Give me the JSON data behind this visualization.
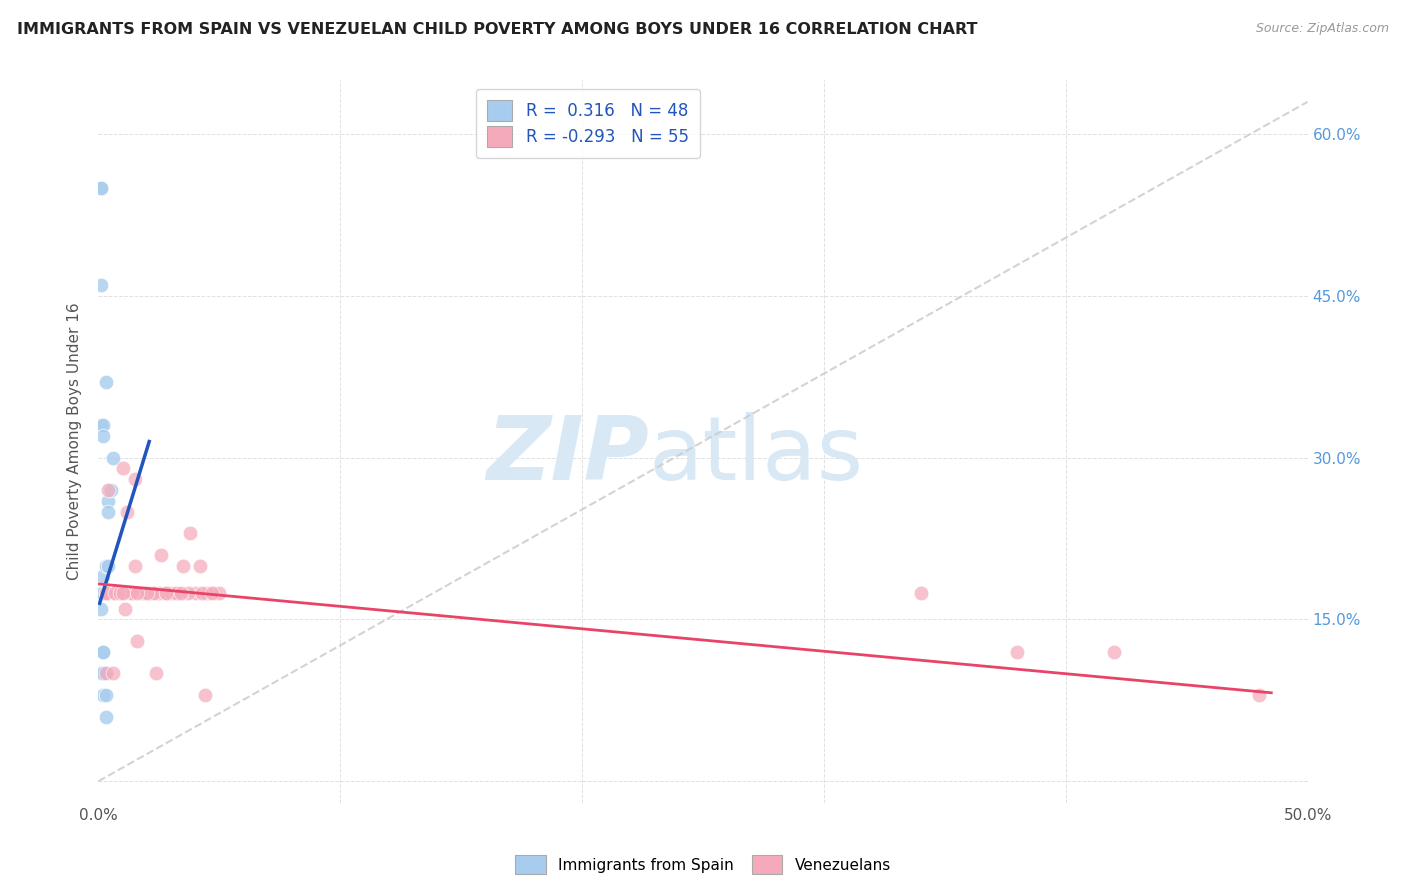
{
  "title": "IMMIGRANTS FROM SPAIN VS VENEZUELAN CHILD POVERTY AMONG BOYS UNDER 16 CORRELATION CHART",
  "source": "Source: ZipAtlas.com",
  "ylabel": "Child Poverty Among Boys Under 16",
  "xlim": [
    0.0,
    0.5
  ],
  "ylim": [
    -0.02,
    0.65
  ],
  "blue_R": 0.316,
  "blue_N": 48,
  "pink_R": -0.293,
  "pink_N": 55,
  "color_blue": "#A8CCEE",
  "color_pink": "#F5AABB",
  "color_blue_line": "#2255BB",
  "color_pink_line": "#E84468",
  "color_dashed": "#CCCCCC",
  "watermark_color": "#D8E8F5",
  "watermark_zip": "ZIP",
  "watermark_atlas": "atlas",
  "legend_label_blue": "Immigrants from Spain",
  "legend_label_pink": "Venezuelans",
  "y_ticks": [
    0.0,
    0.15,
    0.3,
    0.45,
    0.6
  ],
  "x_ticks": [
    0.0,
    0.1,
    0.2,
    0.3,
    0.4,
    0.5
  ],
  "blue_x": [
    0.002,
    0.003,
    0.001,
    0.003,
    0.005,
    0.001,
    0.002,
    0.004,
    0.003,
    0.005,
    0.004,
    0.006,
    0.002,
    0.003,
    0.004,
    0.001,
    0.002,
    0.003,
    0.004,
    0.001,
    0.002,
    0.003,
    0.001,
    0.004,
    0.005,
    0.002,
    0.003,
    0.001,
    0.002,
    0.004,
    0.003,
    0.005,
    0.002,
    0.003,
    0.001,
    0.004,
    0.002,
    0.003,
    0.001,
    0.002,
    0.004,
    0.003,
    0.005,
    0.002,
    0.003,
    0.004,
    0.002,
    0.003
  ],
  "blue_y": [
    0.19,
    0.2,
    0.46,
    0.37,
    0.175,
    0.33,
    0.33,
    0.26,
    0.175,
    0.27,
    0.175,
    0.3,
    0.32,
    0.175,
    0.2,
    0.16,
    0.175,
    0.175,
    0.175,
    0.55,
    0.175,
    0.175,
    0.55,
    0.175,
    0.175,
    0.12,
    0.175,
    0.175,
    0.175,
    0.175,
    0.175,
    0.175,
    0.175,
    0.1,
    0.1,
    0.175,
    0.12,
    0.175,
    0.175,
    0.08,
    0.25,
    0.175,
    0.175,
    0.1,
    0.08,
    0.175,
    0.175,
    0.06
  ],
  "pink_x": [
    0.003,
    0.006,
    0.01,
    0.015,
    0.02,
    0.028,
    0.038,
    0.048,
    0.004,
    0.007,
    0.012,
    0.018,
    0.025,
    0.033,
    0.042,
    0.003,
    0.006,
    0.01,
    0.015,
    0.022,
    0.03,
    0.04,
    0.05,
    0.004,
    0.008,
    0.013,
    0.019,
    0.026,
    0.035,
    0.045,
    0.003,
    0.007,
    0.011,
    0.016,
    0.023,
    0.032,
    0.043,
    0.004,
    0.009,
    0.014,
    0.02,
    0.028,
    0.037,
    0.047,
    0.003,
    0.006,
    0.38,
    0.42,
    0.48,
    0.34,
    0.01,
    0.016,
    0.024,
    0.034,
    0.044
  ],
  "pink_y": [
    0.175,
    0.175,
    0.175,
    0.2,
    0.175,
    0.175,
    0.23,
    0.175,
    0.175,
    0.175,
    0.25,
    0.175,
    0.175,
    0.175,
    0.2,
    0.175,
    0.175,
    0.29,
    0.28,
    0.175,
    0.175,
    0.175,
    0.175,
    0.175,
    0.175,
    0.175,
    0.175,
    0.21,
    0.2,
    0.175,
    0.175,
    0.175,
    0.16,
    0.13,
    0.175,
    0.175,
    0.175,
    0.27,
    0.175,
    0.175,
    0.175,
    0.175,
    0.175,
    0.175,
    0.1,
    0.1,
    0.12,
    0.12,
    0.08,
    0.175,
    0.175,
    0.175,
    0.1,
    0.175,
    0.08
  ],
  "blue_line_x": [
    0.0005,
    0.021
  ],
  "blue_line_y": [
    0.165,
    0.315
  ],
  "pink_line_x": [
    0.0,
    0.485
  ],
  "pink_line_y": [
    0.183,
    0.082
  ]
}
